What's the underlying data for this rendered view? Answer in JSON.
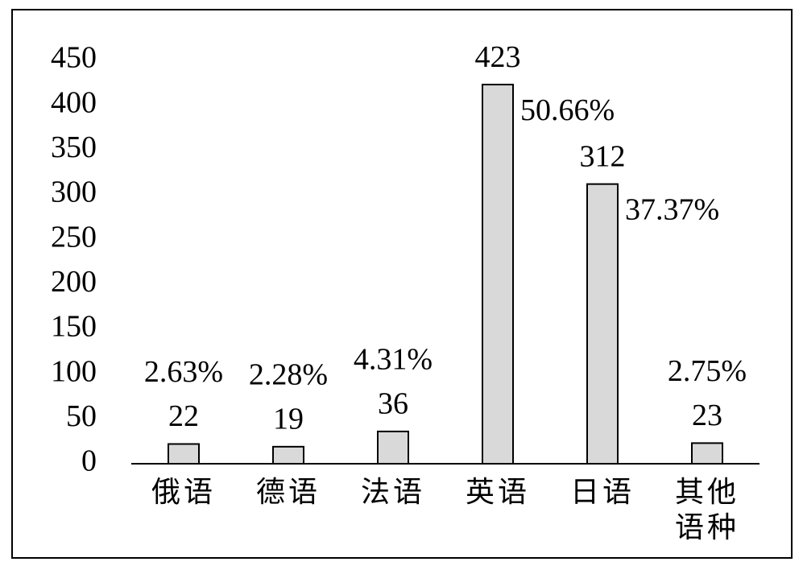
{
  "chart_data": {
    "type": "bar",
    "categories": [
      "俄语",
      "德语",
      "法语",
      "英语",
      "日语",
      "其他语种"
    ],
    "values": [
      22,
      19,
      36,
      423,
      312,
      23
    ],
    "annotations": [
      "2.63%",
      "2.28%",
      "4.31%",
      "50.66%",
      "37.37%",
      "2.75%"
    ],
    "color": "#d9d9d9",
    "ylim": [
      0,
      450
    ],
    "yticks": [
      0,
      50,
      100,
      150,
      200,
      250,
      300,
      350,
      400,
      450
    ],
    "grid": false
  }
}
